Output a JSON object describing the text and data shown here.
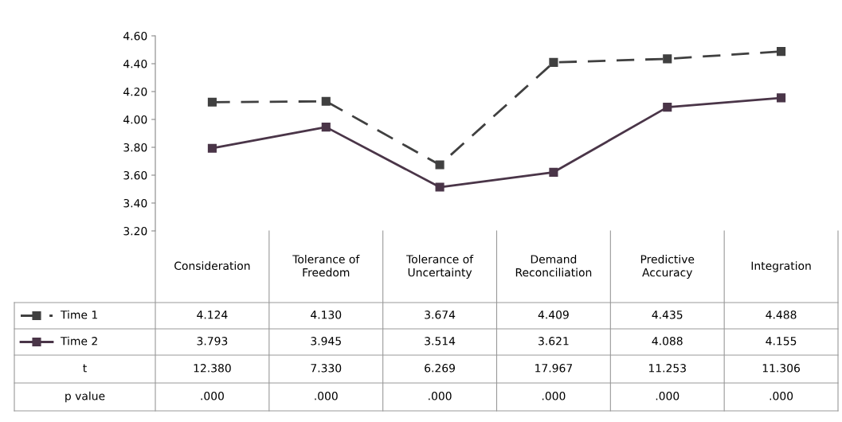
{
  "chart_data": {
    "type": "line",
    "categories": [
      "Consideration",
      "Tolerance of\nFreedom",
      "Tolerance of\nUncertainty",
      "Demand\nReconciliation",
      "Predictive\nAccuracy",
      "Integration"
    ],
    "series": [
      {
        "name": "Time 1",
        "color": "#404040",
        "line_style": "dashed",
        "values": [
          4.124,
          4.13,
          3.674,
          4.409,
          4.435,
          4.488
        ],
        "value_labels": [
          "4.124",
          "4.130",
          "3.674",
          "4.409",
          "4.435",
          "4.488"
        ]
      },
      {
        "name": "Time 2",
        "color": "#4a3548",
        "line_style": "solid",
        "values": [
          3.793,
          3.945,
          3.514,
          3.621,
          4.088,
          4.155
        ],
        "value_labels": [
          "3.793",
          "3.945",
          "3.514",
          "3.621",
          "4.088",
          "4.155"
        ]
      }
    ],
    "ylim": [
      3.2,
      4.6
    ],
    "yticks": [
      {
        "value": 3.2,
        "label": "3.20"
      },
      {
        "value": 3.4,
        "label": "3.40"
      },
      {
        "value": 3.6,
        "label": "3.60"
      },
      {
        "value": 3.8,
        "label": "3.80"
      },
      {
        "value": 4.0,
        "label": "4.00"
      },
      {
        "value": 4.2,
        "label": "4.20"
      },
      {
        "value": 4.4,
        "label": "4.40"
      },
      {
        "value": 4.6,
        "label": "4.60"
      }
    ],
    "marker": "square",
    "grid": false,
    "legend": "bottom",
    "annotations": [
      "t",
      "12.380",
      "7.330",
      "6.269",
      "17.967",
      "11.253",
      "11.306",
      "p value",
      ".000",
      ".000",
      ".000",
      ".000",
      ".000",
      ".000"
    ]
  }
}
